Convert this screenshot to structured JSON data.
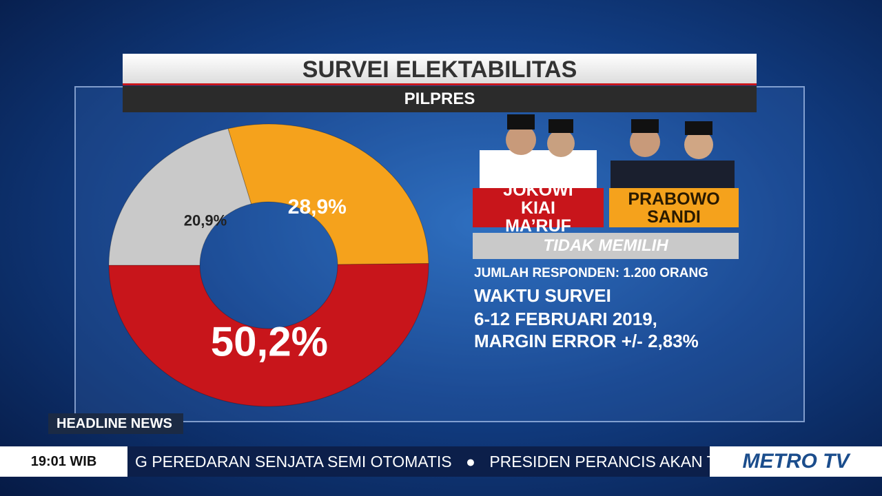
{
  "chart_data": {
    "type": "pie",
    "title": "SURVEI ELEKTABILITAS",
    "subtitle": "PILPRES",
    "categories": [
      "JOKOWI KIAI MA’RUF",
      "PRABOWO SANDI",
      "TIDAK MEMILIH"
    ],
    "values": [
      50.2,
      28.9,
      20.9
    ],
    "value_labels": [
      "50,2%",
      "28,9%",
      "20,9%"
    ],
    "colors": [
      "#c8151b",
      "#f5a21c",
      "#c9c9c9"
    ],
    "donut": true,
    "annotations": [
      "JUMLAH RESPONDEN: 1.200 ORANG",
      "WAKTU SURVEI",
      "6-12 FEBRUARI 2019,",
      "MARGIN ERROR +/- 2,83%"
    ]
  },
  "broadcast": {
    "segment": "HEADLINE NEWS",
    "time": "19:01 WIB",
    "ticker": [
      "G PEREDARAN SENJATA SEMI OTOMATIS",
      "PRESIDEN PERANCIS AKAN TURUN"
    ],
    "channel": "METRO TV"
  }
}
